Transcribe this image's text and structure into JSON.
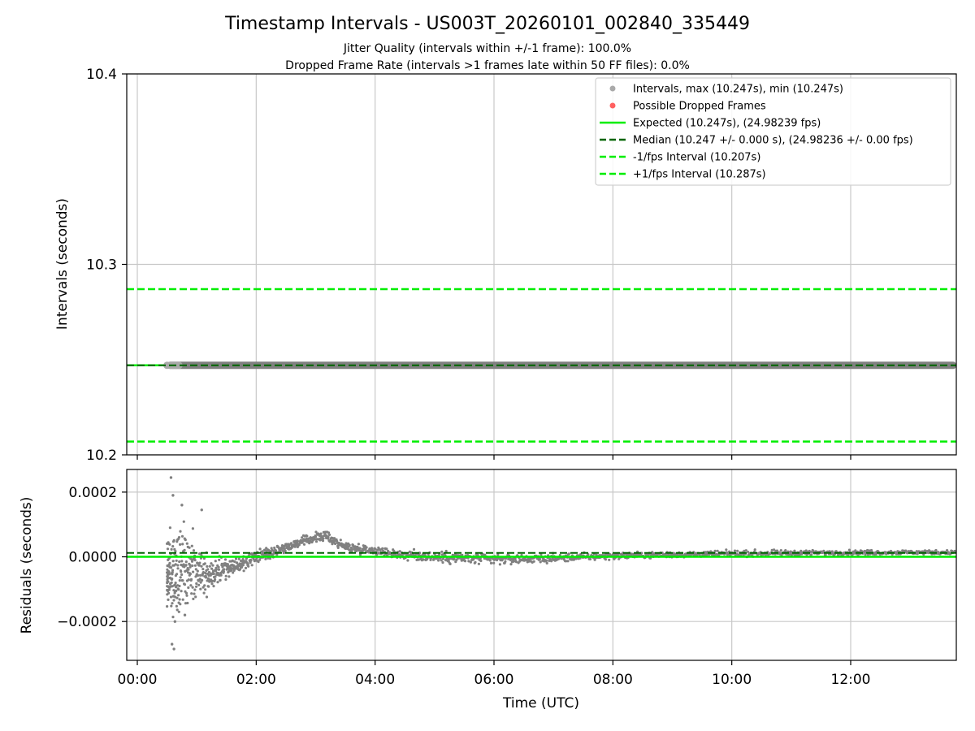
{
  "title": "Timestamp Intervals - US003T_20260101_002840_335449",
  "subtitle_lines": [
    "Jitter Quality (intervals within +/-1 frame): 100.0%",
    "Dropped Frame Rate (intervals >1 frames late within 50 FF files): 0.0%"
  ],
  "colors": {
    "points": "#808080",
    "legend_interval_marker": "#a9a9a9",
    "dropped": "#ff6060",
    "expected": "#00ee00",
    "median": "#006400",
    "bounds": "#00ee00",
    "grid": "#c8c8c8"
  },
  "chart_data": [
    {
      "type": "scatter",
      "name": "intervals",
      "ylabel": "Intervals (seconds)",
      "xlim": [
        "00:00",
        "13:45"
      ],
      "ylim": [
        10.2,
        10.4
      ],
      "yticks": [
        "10.2",
        "10.3",
        "10.4"
      ],
      "grid": true,
      "legend_position": "top-right",
      "legend": [
        "Intervals, max (10.247s), min (10.247s)",
        "Possible Dropped Frames",
        "Expected (10.247s), (24.98239 fps)",
        "Median (10.247 +/- 0.000 s), (24.98236 +/- 0.00 fps)",
        "-1/fps Interval (10.207s)",
        "+1/fps Interval (10.287s)"
      ],
      "series": [
        {
          "name": "Intervals, max (10.247s), min (10.247s)",
          "x_start": "00:30",
          "x_end": "13:45",
          "value": 10.247
        },
        {
          "name": "Possible Dropped Frames",
          "values": []
        }
      ],
      "lines": {
        "expected": 10.247,
        "median": 10.247,
        "minus_1fps": 10.207,
        "plus_1fps": 10.287
      }
    },
    {
      "type": "scatter",
      "name": "residuals",
      "ylabel": "Residuals (seconds)",
      "xlabel": "Time (UTC)",
      "xlim": [
        "00:00",
        "13:45"
      ],
      "ylim": [
        -0.00032,
        0.00027
      ],
      "xticks": [
        "00:00",
        "02:00",
        "04:00",
        "06:00",
        "08:00",
        "10:00",
        "12:00"
      ],
      "yticks": [
        "−0.0002",
        "0.0000",
        "0.0002"
      ],
      "grid": true,
      "lines": {
        "expected": 0.0,
        "median": 1.2e-05
      },
      "residual_trend": {
        "x": [
          "00:30",
          "00:40",
          "01:00",
          "01:20",
          "01:40",
          "02:00",
          "02:20",
          "02:40",
          "03:00",
          "03:10",
          "03:30",
          "04:00",
          "04:30",
          "05:00",
          "05:30",
          "06:00",
          "07:00",
          "08:00",
          "09:00",
          "10:00",
          "11:00",
          "12:00",
          "13:00",
          "13:45"
        ],
        "y": [
          -5e-05,
          -4e-05,
          -5e-05,
          -4.5e-05,
          -3e-05,
          0.0,
          2e-05,
          4e-05,
          6e-05,
          6.5e-05,
          3e-05,
          2e-05,
          5e-06,
          0.0,
          -5e-06,
          -8e-06,
          -5e-06,
          3e-06,
          7e-06,
          1e-05,
          1.2e-05,
          1.3e-05,
          1.4e-05,
          1.4e-05
        ]
      },
      "residual_spread": {
        "x": [
          "00:30",
          "00:40",
          "01:00",
          "01:20",
          "01:40",
          "02:00",
          "02:30",
          "03:00",
          "03:30",
          "04:00",
          "05:00",
          "06:00",
          "07:00",
          "08:00",
          "10:00",
          "12:00",
          "13:45"
        ],
        "y": [
          8e-05,
          0.00013,
          6e-05,
          4e-05,
          2e-05,
          1.5e-05,
          1e-05,
          1.2e-05,
          1.2e-05,
          1e-05,
          1.5e-05,
          1.3e-05,
          1e-05,
          8e-06,
          7e-06,
          6e-06,
          5e-06
        ]
      },
      "residual_extremes": [
        {
          "x": "00:34",
          "y": 0.000245
        },
        {
          "x": "00:36",
          "y": 0.00019
        },
        {
          "x": "00:37",
          "y": -0.000285
        },
        {
          "x": "00:35",
          "y": -0.00027
        },
        {
          "x": "00:38",
          "y": -0.0002
        },
        {
          "x": "00:45",
          "y": 0.00016
        },
        {
          "x": "01:05",
          "y": 0.000145
        },
        {
          "x": "00:48",
          "y": -0.00018
        }
      ]
    }
  ]
}
